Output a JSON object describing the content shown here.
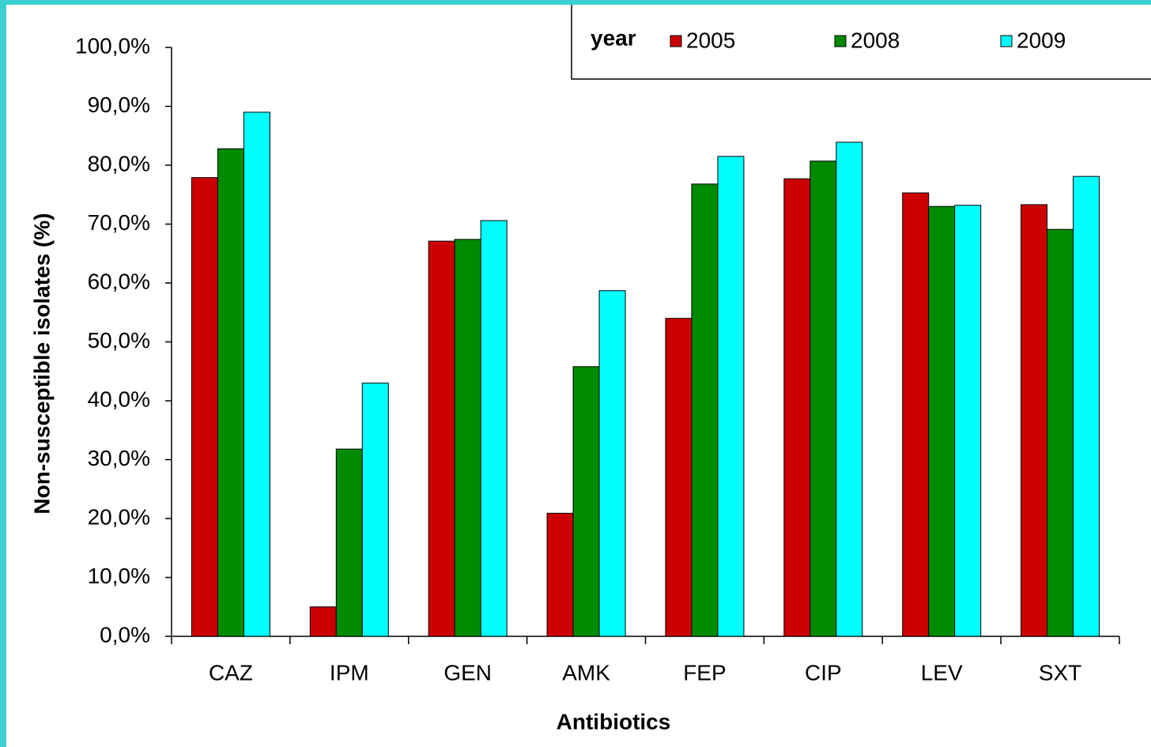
{
  "chart_data": {
    "type": "bar",
    "x_label": "Antibiotics",
    "y_label": "Non-susceptible isolates (%)",
    "legend_title": "year",
    "categories": [
      "CAZ",
      "IPM",
      "GEN",
      "AMK",
      "FEP",
      "CIP",
      "LEV",
      "SXT"
    ],
    "series": [
      {
        "name": "2005",
        "color": "#cc0000",
        "values": [
          77.9,
          5.0,
          67.1,
          20.9,
          54.0,
          77.7,
          75.3,
          73.3
        ]
      },
      {
        "name": "2008",
        "color": "#008a00",
        "values": [
          82.8,
          31.8,
          67.4,
          45.8,
          76.8,
          80.7,
          73.0,
          69.1
        ]
      },
      {
        "name": "2009",
        "color": "#00ffff",
        "values": [
          89.0,
          43.0,
          70.6,
          58.7,
          81.5,
          83.9,
          73.2,
          78.1
        ]
      }
    ],
    "ylim": [
      0,
      100
    ],
    "yticks": [
      {
        "value": 0,
        "label": "0,0%"
      },
      {
        "value": 10,
        "label": "10,0%"
      },
      {
        "value": 20,
        "label": "20,0%"
      },
      {
        "value": 30,
        "label": "30,0%"
      },
      {
        "value": 40,
        "label": "40,0%"
      },
      {
        "value": 50,
        "label": "50,0%"
      },
      {
        "value": 60,
        "label": "60,0%"
      },
      {
        "value": 70,
        "label": "70,0%"
      },
      {
        "value": 80,
        "label": "80,0%"
      },
      {
        "value": 90,
        "label": "90,0%"
      },
      {
        "value": 100,
        "label": "100,0%"
      }
    ],
    "legend_position": "top-right",
    "grid": false
  }
}
